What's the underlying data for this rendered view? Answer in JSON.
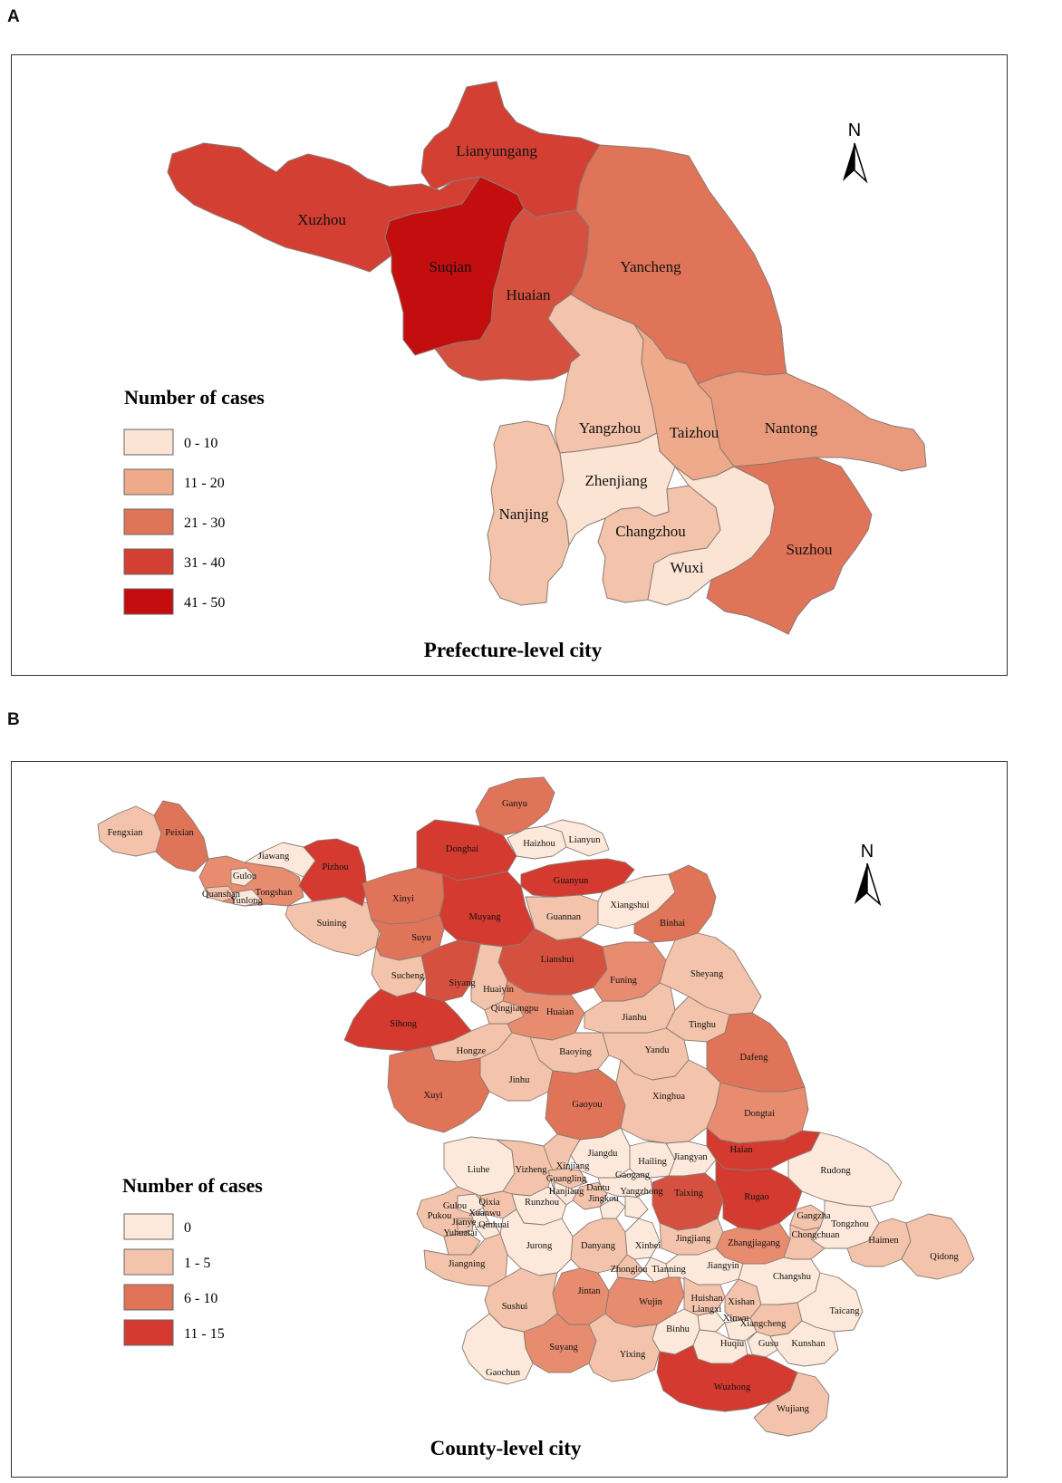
{
  "panel_a": {
    "letter": "A",
    "title": "Prefecture-level city",
    "legend_title": "Number of cases",
    "north": "N",
    "legend": [
      {
        "label": "0 - 10",
        "color": "#fbe4d3"
      },
      {
        "label": "11 - 20",
        "color": "#eeaa8a"
      },
      {
        "label": "21 - 30",
        "color": "#e07458"
      },
      {
        "label": "31 - 40",
        "color": "#d43f33"
      },
      {
        "label": "41 - 50",
        "color": "#c40d0e"
      }
    ],
    "cities": {
      "lianyungang": "Lianyungang",
      "xuzhou": "Xuzhou",
      "suqian": "Suqian",
      "huaian": "Huaian",
      "yancheng": "Yancheng",
      "yangzhou": "Yangzhou",
      "taizhou": "Taizhou",
      "nantong": "Nantong",
      "zhenjiang": "Zhenjiang",
      "nanjing": "Nanjing",
      "changzhou": "Changzhou",
      "wuxi": "Wuxi",
      "suzhou": "Suzhou"
    }
  },
  "panel_b": {
    "letter": "B",
    "title": "County-level city",
    "legend_title": "Number of cases",
    "north": "N",
    "legend": [
      {
        "label": "0",
        "color": "#fce9db"
      },
      {
        "label": "1 - 5",
        "color": "#f3c4ab"
      },
      {
        "label": "6 - 10",
        "color": "#e07458"
      },
      {
        "label": "11 - 15",
        "color": "#d43a2f"
      }
    ],
    "counties": {
      "ganyu": "Ganyu",
      "haizhou": "Haizhou",
      "lianyun": "Lianyun",
      "fengxian": "Fengxian",
      "peixian": "Peixian",
      "jiawang": "Jiawang",
      "pizhou": "Pizhou",
      "donghai": "Donghai",
      "guanyun": "Guanyun",
      "gulou_xz": "Gulou",
      "quanshan": "Quanshan",
      "yunlong": "Yunlong",
      "tongshan": "Tongshan",
      "xinyi": "Xinyi",
      "muyang": "Muyang",
      "guannan": "Guannan",
      "xiangshui": "Xiangshui",
      "binhai": "Binhai",
      "suining": "Suining",
      "suyu": "Suyu",
      "lianshui": "Lianshui",
      "sucheng": "Sucheng",
      "siyang": "Siyang",
      "huaiyin": "Huaiyin",
      "funing": "Funing",
      "sheyang": "Sheyang",
      "qingjiangpu": "Qingjiangpu",
      "huaian": "Huaian",
      "sihong": "Sihong",
      "jianhu": "Jianhu",
      "tinghu": "Tinghu",
      "hongze": "Hongze",
      "baoying": "Baoying",
      "yandu": "Yandu",
      "dafeng": "Dafeng",
      "jinhu": "Jinhu",
      "xuyi": "Xuyi",
      "gaoyou": "Gaoyou",
      "xinghua": "Xinghua",
      "dongtai": "Dongtai",
      "jiangdu": "Jiangdu",
      "hailing": "Hailing",
      "jiangyan": "Jiangyan",
      "haian": "Haian",
      "liuhe": "Liuhe",
      "xinjiang": "Xinjiang",
      "yizheng": "Yizheng",
      "guangling": "Guangling",
      "gaogang": "Gaogang",
      "rudong": "Rudong",
      "hanjiang": "Hanjiang",
      "dantu": "Dantu",
      "jingkou": "Jingkou",
      "yangzhong": "Yangzhong",
      "taixing": "Taixing",
      "rugao": "Rugao",
      "gulou_nj": "Gulou",
      "qixia": "Qixia",
      "xuanwu": "Xuanwu",
      "jianye": "Jianye",
      "qinhuai": "Qinhuai",
      "runzhou": "Runzhou",
      "pukou": "Pukou",
      "yuhuatai": "Yuhuatai",
      "jurong": "Jurong",
      "danyang": "Danyang",
      "xinbei": "Xinbei",
      "jingjiang": "Jingjiang",
      "zhangjiagang": "Zhangjiagang",
      "gangzha": "Gangzha",
      "tongzhou": "Tongzhou",
      "chongchuan": "Chongchuan",
      "haimen": "Haimen",
      "qidong": "Qidong",
      "jiangning": "Jiangning",
      "zhonglou": "Zhonglou",
      "tianning": "Tianning",
      "jiangyin": "Jiangyin",
      "jintan": "Jintan",
      "sushui": "Sushui",
      "wujin": "Wujin",
      "huishan": "Huishan",
      "liangxi": "Liangxi",
      "xishan": "Xishan",
      "changshu": "Changshu",
      "xinwu": "Xinwu",
      "taicang": "Taicang",
      "suyang": "Suyang",
      "binhu": "Binhu",
      "xiangcheng": "Xiangcheng",
      "yixing": "Yixing",
      "huqiu": "Huqiu",
      "gusu": "Gusu",
      "kunshan": "Kunshan",
      "gaochun": "Gaochun",
      "wuzhong": "Wuzhong",
      "wujiang": "Wujiang"
    }
  }
}
